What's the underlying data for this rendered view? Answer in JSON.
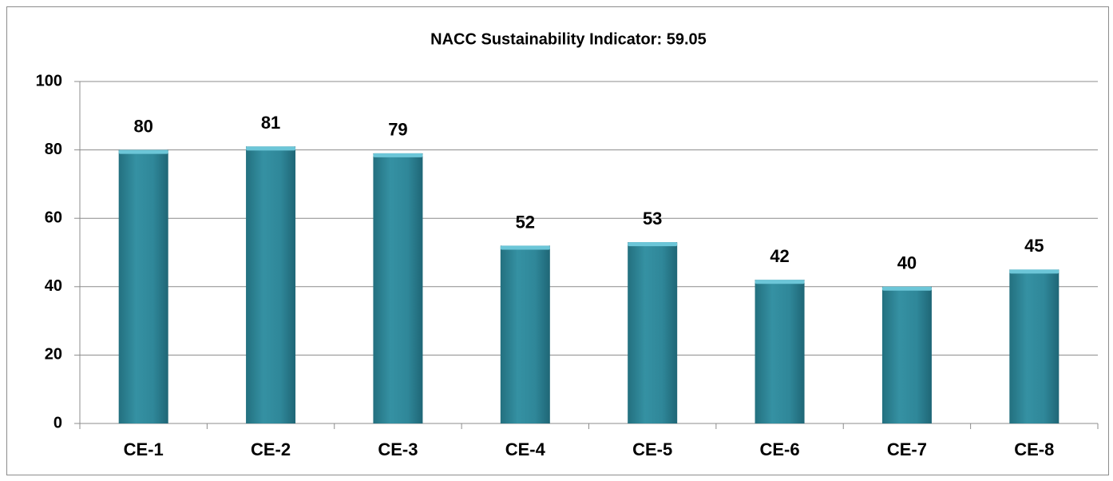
{
  "chart_data": {
    "type": "bar",
    "title": "NACC Sustainability Indicator: 59.05",
    "categories": [
      "CE-1",
      "CE-2",
      "CE-3",
      "CE-4",
      "CE-5",
      "CE-6",
      "CE-7",
      "CE-8"
    ],
    "values": [
      80,
      81,
      79,
      52,
      53,
      42,
      40,
      45
    ],
    "color": "#2f8799",
    "ylim": [
      0,
      100
    ],
    "yticks": [
      0,
      20,
      40,
      60,
      80,
      100
    ],
    "grid": true
  }
}
